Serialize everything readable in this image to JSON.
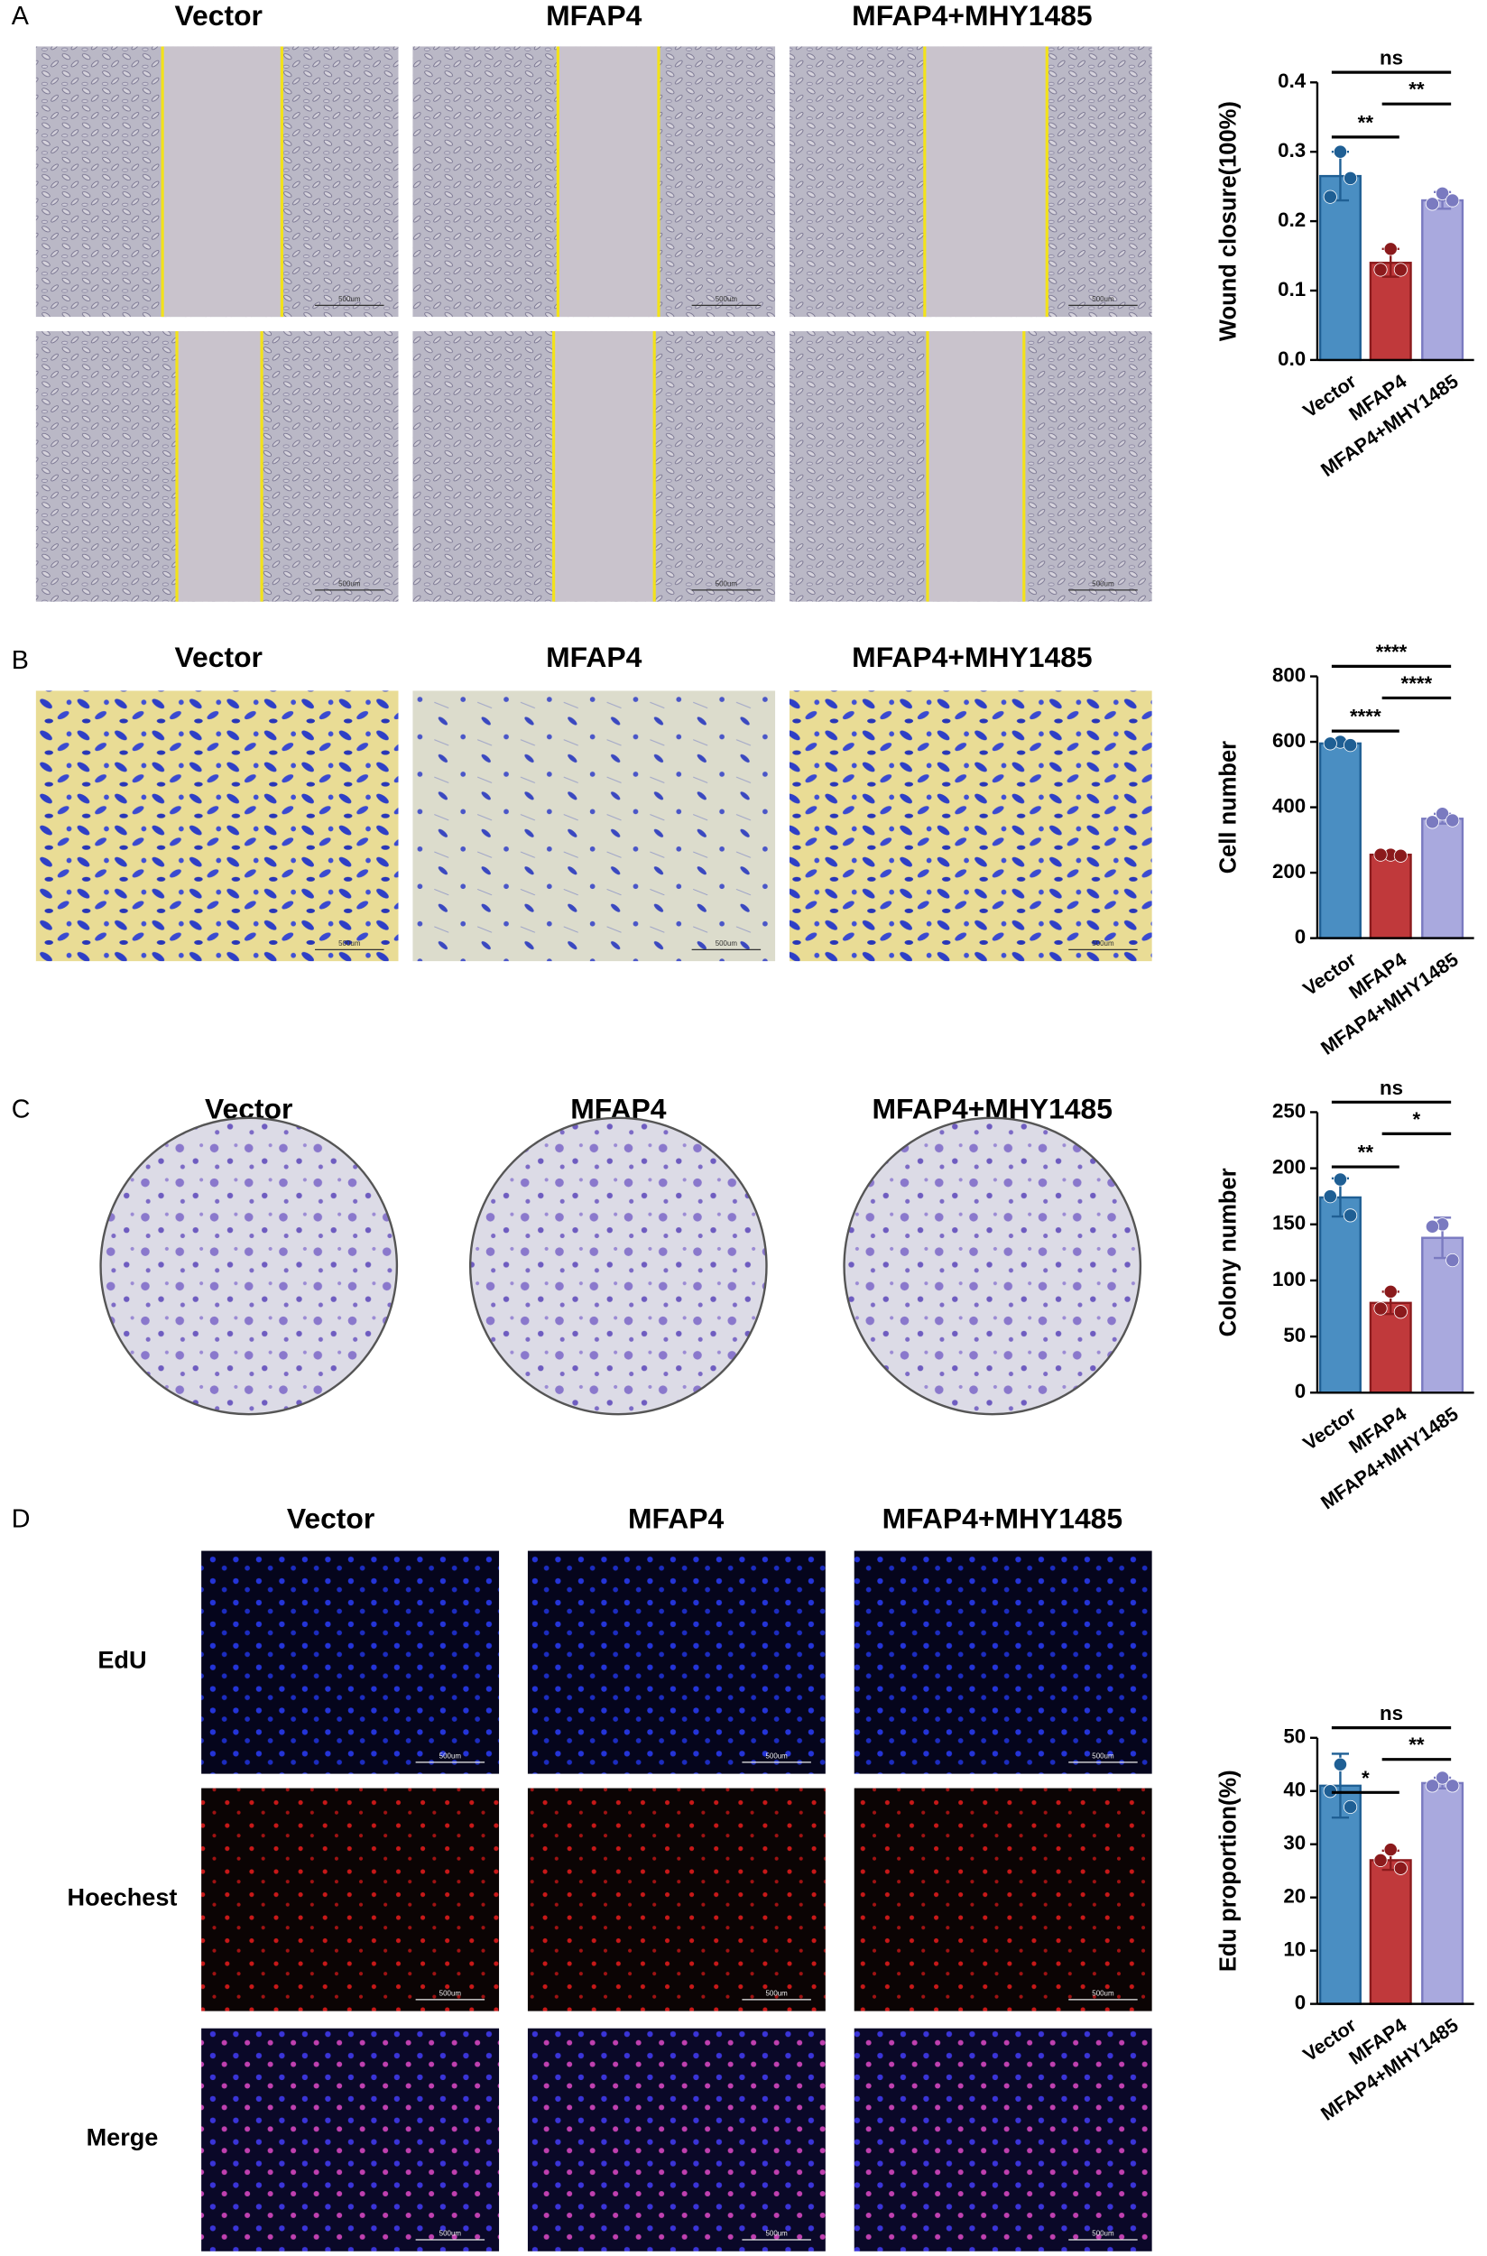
{
  "figure": {
    "panels": [
      "A",
      "B",
      "C",
      "D"
    ],
    "conditions": [
      "Vector",
      "MFAP4",
      "MFAP4+MHY1485"
    ],
    "rows_D": [
      "EdU",
      "Hoechest",
      "Merge"
    ],
    "scale_bar": "500um"
  },
  "chart_data": [
    {
      "type": "bar",
      "y_label": "Wound closure(100%)",
      "categories": [
        "Vector",
        "MFAP4",
        "MFAP4+MHY1485"
      ],
      "values": [
        0.265,
        0.14,
        0.23
      ],
      "errors": [
        0.035,
        0.02,
        0.012
      ],
      "points": [
        [
          0.3,
          0.235,
          0.262
        ],
        [
          0.16,
          0.13,
          0.13
        ],
        [
          0.24,
          0.225,
          0.23
        ]
      ],
      "colors": [
        "#4a8ec2",
        "#c0393b",
        "#a9a9de"
      ],
      "edge_colors": [
        "#1f5f94",
        "#8b1a1c",
        "#7a7ac0"
      ],
      "ylim": [
        0,
        0.4
      ],
      "yticks": [
        {
          "value": 0,
          "label": "0.0"
        },
        0.1,
        0.2,
        0.3,
        0.4
      ],
      "significance": [
        {
          "from": 0,
          "to": 2,
          "label": "ns"
        },
        {
          "from": 1,
          "to": 2,
          "label": "**"
        },
        {
          "from": 0,
          "to": 1,
          "label": "**"
        }
      ]
    },
    {
      "type": "bar",
      "y_label": "Cell number",
      "categories": [
        "Vector",
        "MFAP4",
        "MFAP4+MHY1485"
      ],
      "values": [
        595,
        255,
        365
      ],
      "errors": [
        5,
        3,
        15
      ],
      "points": [
        [
          600,
          595,
          590
        ],
        [
          255,
          255,
          252
        ],
        [
          380,
          355,
          360
        ]
      ],
      "colors": [
        "#4a8ec2",
        "#c0393b",
        "#a9a9de"
      ],
      "edge_colors": [
        "#1f5f94",
        "#8b1a1c",
        "#7a7ac0"
      ],
      "ylim": [
        0,
        800
      ],
      "yticks": [
        0,
        200,
        400,
        600,
        800
      ],
      "significance": [
        {
          "from": 0,
          "to": 2,
          "label": "****"
        },
        {
          "from": 1,
          "to": 2,
          "label": "****"
        },
        {
          "from": 0,
          "to": 1,
          "label": "****"
        }
      ]
    },
    {
      "type": "bar",
      "y_label": "Colony number",
      "categories": [
        "Vector",
        "MFAP4",
        "MFAP4+MHY1485"
      ],
      "values": [
        174,
        80,
        138
      ],
      "errors": [
        17,
        10,
        18
      ],
      "points": [
        [
          190,
          175,
          158
        ],
        [
          90,
          75,
          72
        ],
        [
          150,
          148,
          118
        ]
      ],
      "colors": [
        "#4a8ec2",
        "#c0393b",
        "#a9a9de"
      ],
      "edge_colors": [
        "#1f5f94",
        "#8b1a1c",
        "#7a7ac0"
      ],
      "ylim": [
        0,
        250
      ],
      "yticks": [
        0,
        50,
        100,
        150,
        200,
        250
      ],
      "significance": [
        {
          "from": 0,
          "to": 2,
          "label": "ns"
        },
        {
          "from": 1,
          "to": 2,
          "label": "*"
        },
        {
          "from": 0,
          "to": 1,
          "label": "**"
        }
      ]
    },
    {
      "type": "bar",
      "y_label": "Edu proportion(%)",
      "categories": [
        "Vector",
        "MFAP4",
        "MFAP4+MHY1485"
      ],
      "values": [
        41,
        27,
        41.5
      ],
      "errors": [
        6,
        1.8,
        1
      ],
      "points": [
        [
          45,
          40,
          37
        ],
        [
          29,
          27,
          25.5
        ],
        [
          42.5,
          41,
          41
        ]
      ],
      "colors": [
        "#4a8ec2",
        "#c0393b",
        "#a9a9de"
      ],
      "edge_colors": [
        "#1f5f94",
        "#8b1a1c",
        "#7a7ac0"
      ],
      "ylim": [
        0,
        50
      ],
      "yticks": [
        0,
        10,
        20,
        30,
        40,
        50
      ],
      "significance": [
        {
          "from": 0,
          "to": 2,
          "label": "ns"
        },
        {
          "from": 1,
          "to": 2,
          "label": "**"
        },
        {
          "from": 0,
          "to": 1,
          "label": "*"
        }
      ]
    }
  ]
}
